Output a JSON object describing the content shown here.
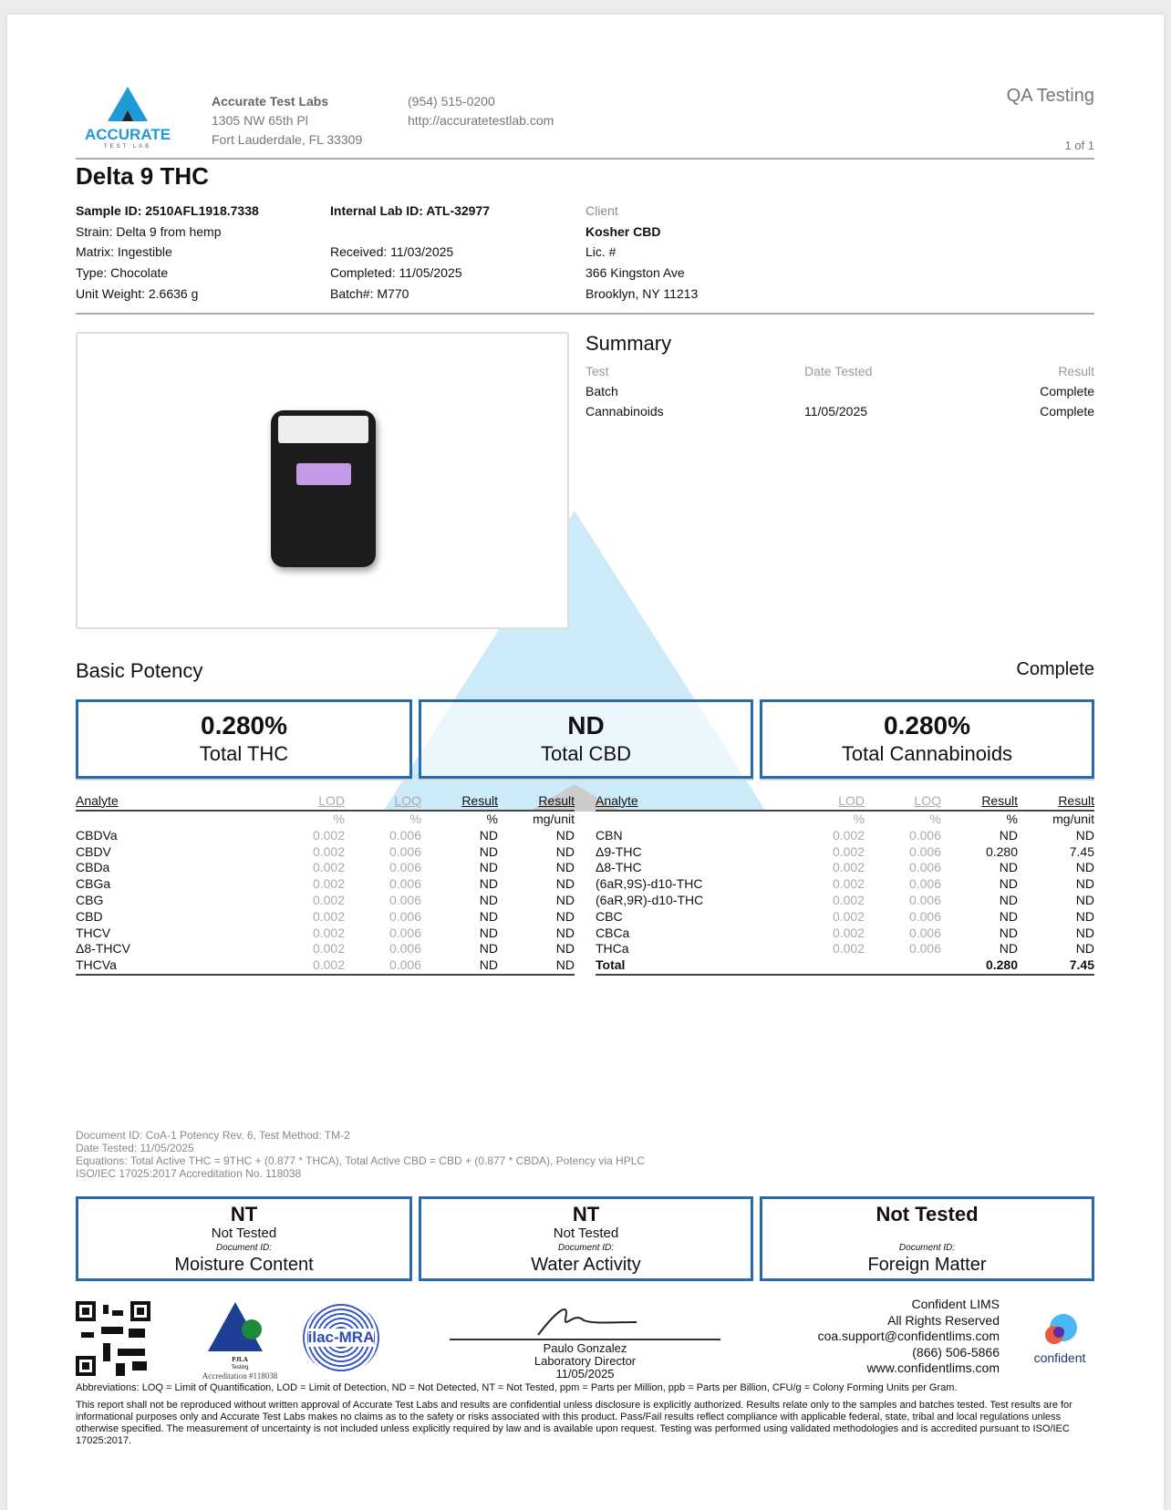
{
  "header": {
    "lab_name": "Accurate Test Labs",
    "address1": "1305 NW 65th Pl",
    "address2": "Fort Lauderdale, FL 33309",
    "phone": "(954) 515-0200",
    "website": "http://accuratetestlab.com",
    "doc_type": "QA Testing",
    "page": "1 of 1",
    "logo_text": "ACCURATE",
    "logo_sub": "TEST LAB"
  },
  "title": "Delta 9 THC",
  "sample": {
    "sample_id": "Sample ID: 2510AFL1918.7338",
    "strain": "Strain: Delta 9 from hemp",
    "matrix": "Matrix: Ingestible",
    "type": "Type: Chocolate",
    "unit_weight": "Unit Weight: 2.6636 g",
    "internal_id": "Internal Lab ID: ATL-32977",
    "received": "Received: 11/03/2025",
    "completed": "Completed: 11/05/2025",
    "batch": "Batch#: M770"
  },
  "client": {
    "label": "Client",
    "name": "Kosher CBD",
    "lic": "Lic. #",
    "address1": "366 Kingston Ave",
    "address2": "Brooklyn, NY 11213"
  },
  "summary": {
    "title": "Summary",
    "headers": [
      "Test",
      "Date Tested",
      "Result"
    ],
    "rows": [
      [
        "Batch",
        "",
        "Complete"
      ],
      [
        "Cannabinoids",
        "11/05/2025",
        "Complete"
      ]
    ]
  },
  "potency": {
    "title": "Basic Potency",
    "status": "Complete",
    "totals": [
      {
        "value": "0.280%",
        "label": "Total THC"
      },
      {
        "value": "ND",
        "label": "Total CBD"
      },
      {
        "value": "0.280%",
        "label": "Total Cannabinoids"
      }
    ]
  },
  "table": {
    "headers": [
      "Analyte",
      "LOD",
      "LOQ",
      "Result",
      "Result"
    ],
    "units": [
      "",
      "%",
      "%",
      "%",
      "mg/unit"
    ],
    "left": [
      [
        "CBDVa",
        "0.002",
        "0.006",
        "ND",
        "ND"
      ],
      [
        "CBDV",
        "0.002",
        "0.006",
        "ND",
        "ND"
      ],
      [
        "CBDa",
        "0.002",
        "0.006",
        "ND",
        "ND"
      ],
      [
        "CBGa",
        "0.002",
        "0.006",
        "ND",
        "ND"
      ],
      [
        "CBG",
        "0.002",
        "0.006",
        "ND",
        "ND"
      ],
      [
        "CBD",
        "0.002",
        "0.006",
        "ND",
        "ND"
      ],
      [
        "THCV",
        "0.002",
        "0.006",
        "ND",
        "ND"
      ],
      [
        "Δ8-THCV",
        "0.002",
        "0.006",
        "ND",
        "ND"
      ],
      [
        "THCVa",
        "0.002",
        "0.006",
        "ND",
        "ND"
      ]
    ],
    "right": [
      [
        "CBN",
        "0.002",
        "0.006",
        "ND",
        "ND"
      ],
      [
        "Δ9-THC",
        "0.002",
        "0.006",
        "0.280",
        "7.45"
      ],
      [
        "Δ8-THC",
        "0.002",
        "0.006",
        "ND",
        "ND"
      ],
      [
        "(6aR,9S)-d10-THC",
        "0.002",
        "0.006",
        "ND",
        "ND"
      ],
      [
        "(6aR,9R)-d10-THC",
        "0.002",
        "0.006",
        "ND",
        "ND"
      ],
      [
        "CBC",
        "0.002",
        "0.006",
        "ND",
        "ND"
      ],
      [
        "CBCa",
        "0.002",
        "0.006",
        "ND",
        "ND"
      ],
      [
        "THCa",
        "0.002",
        "0.006",
        "ND",
        "ND"
      ],
      [
        "Total",
        "",
        "",
        "0.280",
        "7.45"
      ]
    ]
  },
  "watermark": {
    "big": "ACCURATE",
    "small": "TEST LAB"
  },
  "notes": [
    "Document ID: CoA-1 Potency Rev. 6, Test Method: TM-2",
    "Date Tested: 11/05/2025",
    "Equations: Total Active THC = 9THC + (0.877 * THCA), Total Active CBD = CBD + (0.877 * CBDA), Potency via HPLC",
    "ISO/IEC 17025:2017 Accreditation No. 118038"
  ],
  "other_tests": [
    {
      "value": "NT",
      "sub": "Not Tested",
      "doc": "Document ID:",
      "label": "Moisture Content"
    },
    {
      "value": "NT",
      "sub": "Not Tested",
      "doc": "Document ID:",
      "label": "Water Activity"
    },
    {
      "value": "Not Tested",
      "sub": "",
      "doc": "Document ID:",
      "label": "Foreign Matter"
    }
  ],
  "footer": {
    "pjla": "PJLA",
    "pjla_sub": "Testing",
    "accreditation": "Accreditation #118038",
    "ilac": "ilac-MRA",
    "signer": "Paulo Gonzalez",
    "signer_title": "Laboratory Director",
    "sign_date": "11/05/2025",
    "lims": [
      "Confident LIMS",
      "All Rights Reserved",
      "coa.support@confidentlims.com",
      "(866) 506-5866",
      "www.confidentlims.com"
    ],
    "lims_logo": "confident",
    "abbreviations": "Abbreviations: LOQ = Limit of Quantification, LOD = Limit of Detection, ND = Not Detected, NT = Not Tested, ppm = Parts per Million, ppb = Parts per Billion, CFU/g = Colony Forming Units per Gram.",
    "disclaimer": "This report shall not be reproduced without written approval of Accurate Test Labs and results are confidential unless disclosure is explicitly authorized. Results relate only to the samples and batches tested. Test results are for informational purposes only and Accurate Test Labs makes no claims as to the safety or risks associated with this product. Pass/Fail results reflect compliance with applicable federal, state, tribal and local regulations unless otherwise specified. The measurement of uncertainty is not included unless explicitly required by law and is available upon request. Testing was performed using validated methodologies and is accredited pursuant to ISO/IEC 17025:2017."
  },
  "colors": {
    "accent": "#2a6aa8",
    "logo": "#1e9ad6",
    "watermark": "#bfe3f5"
  }
}
